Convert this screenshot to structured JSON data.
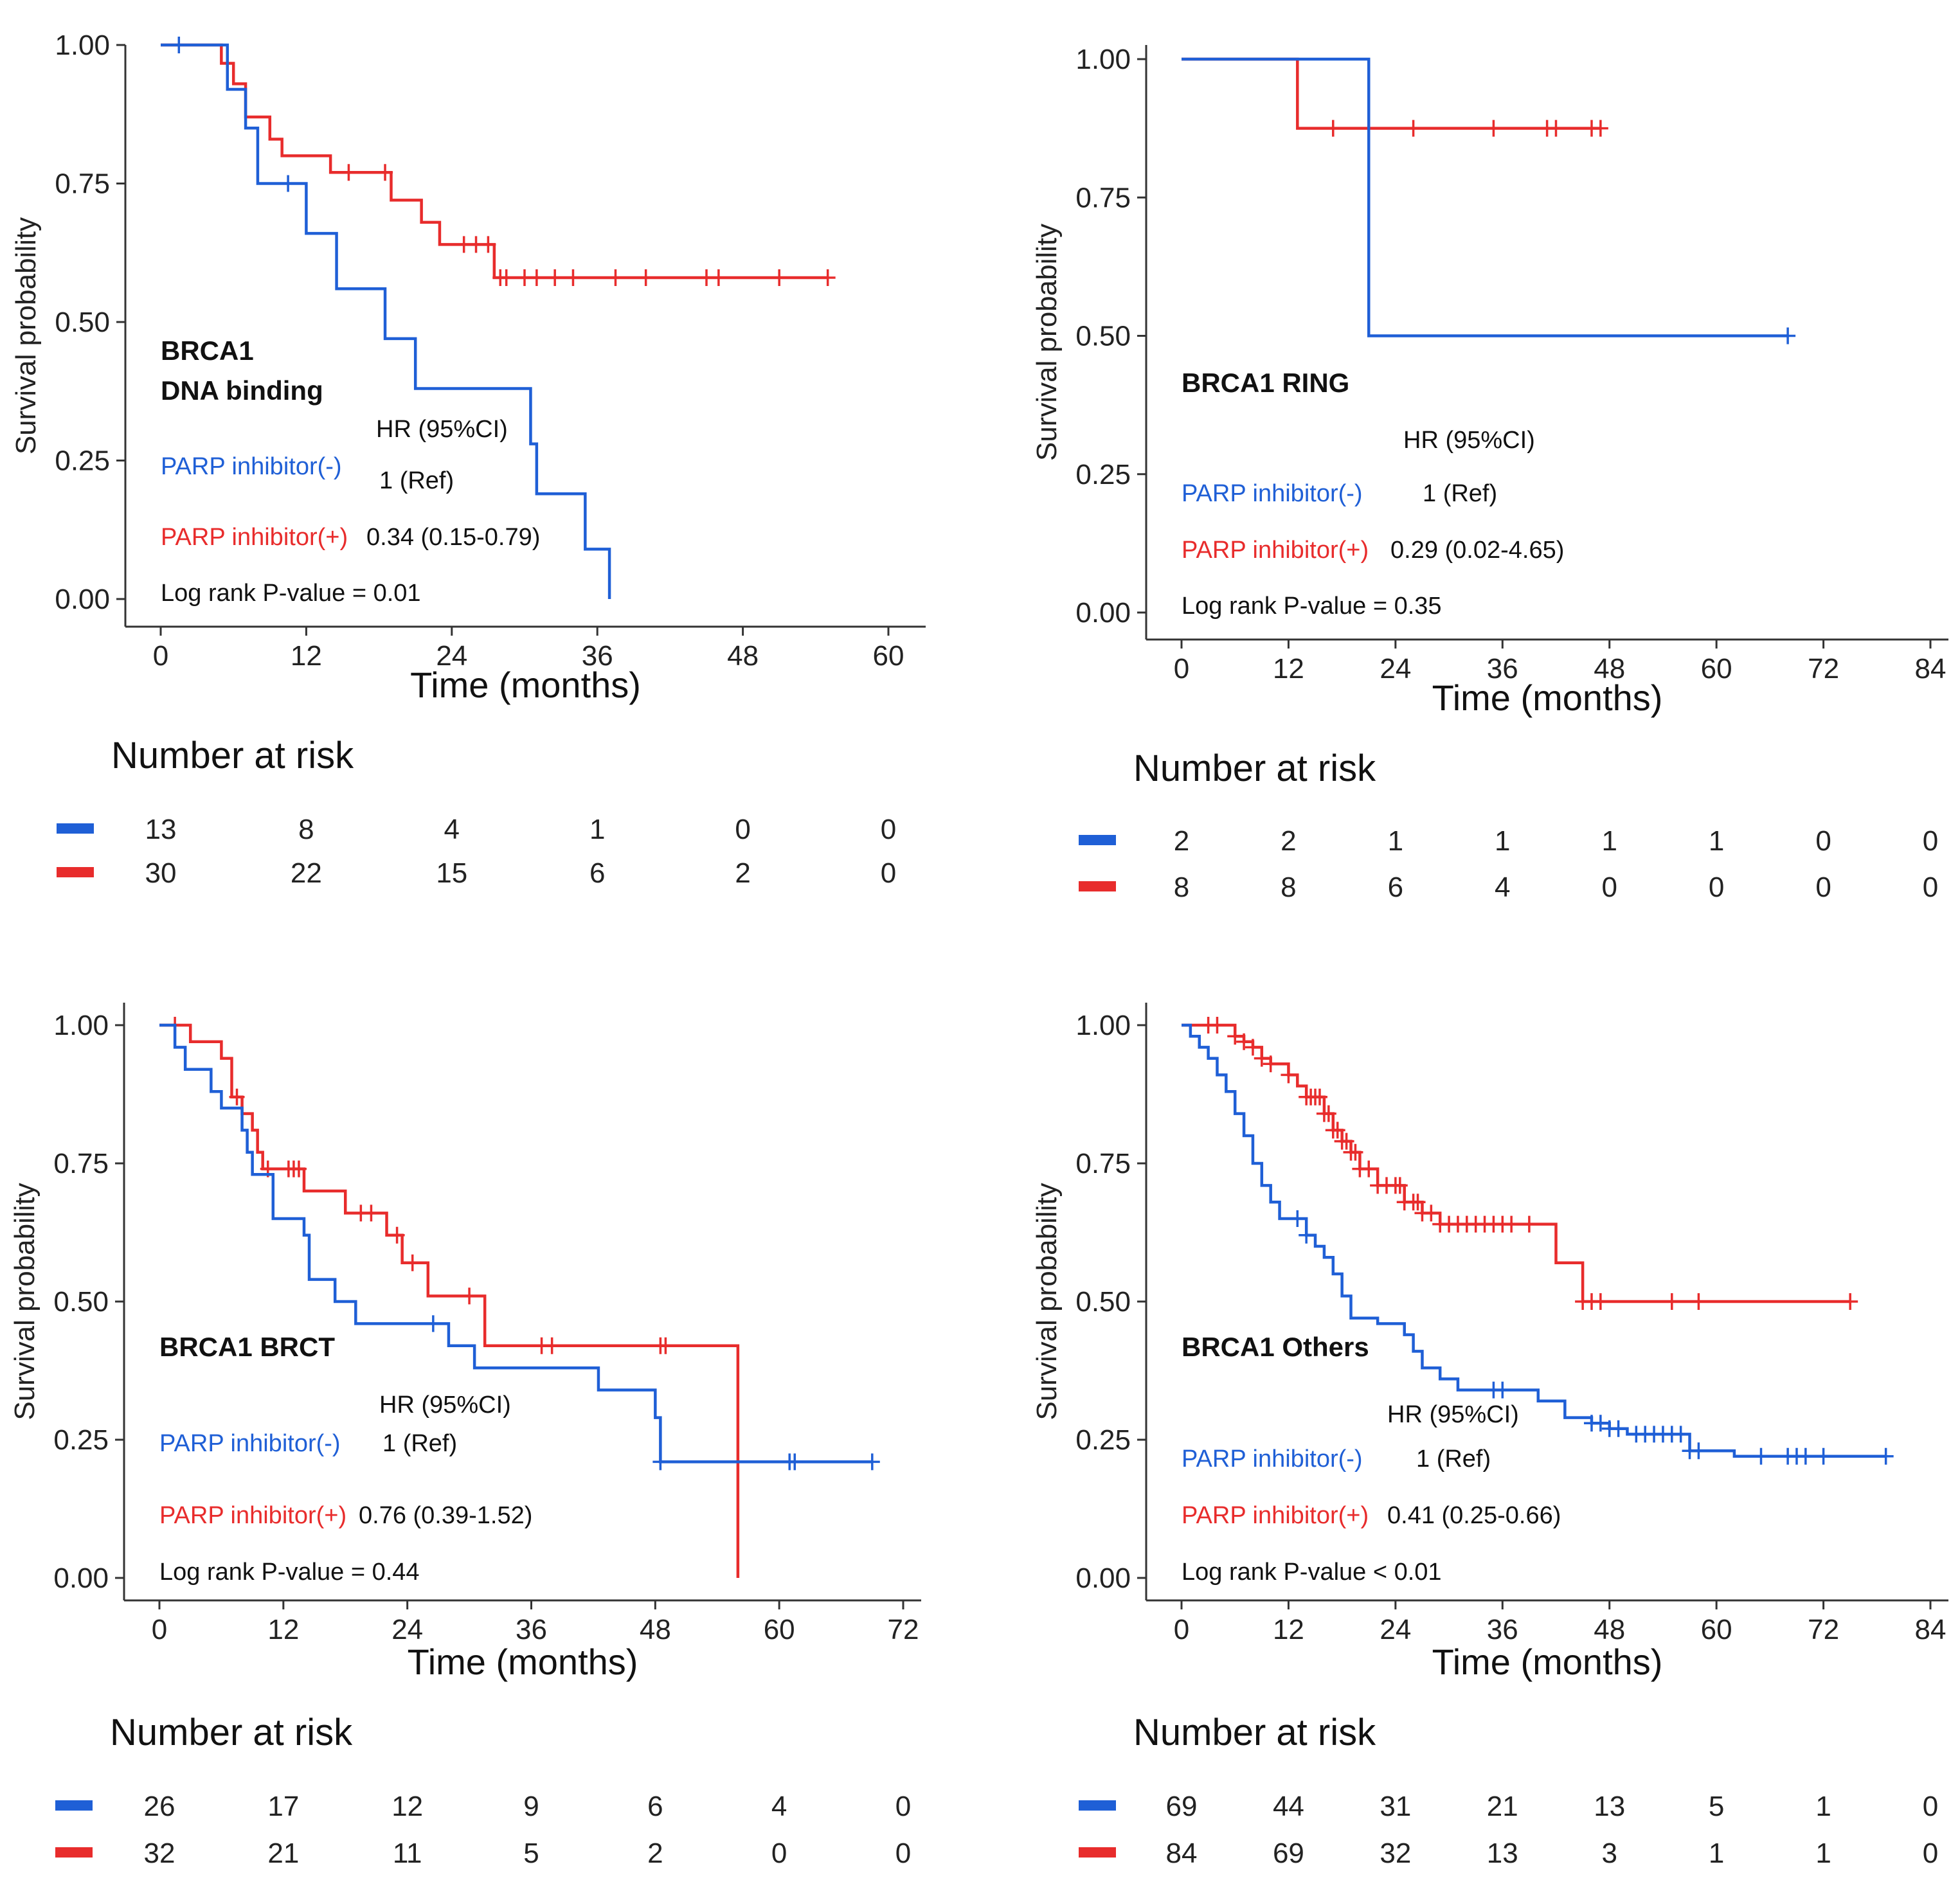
{
  "colors": {
    "negative": "#1f5fd6",
    "positive": "#e82c2c",
    "axis": "#333333",
    "text": "#111111"
  },
  "common": {
    "xlabel": "Time (months)",
    "ylabel": "Survival probability",
    "yticks": [
      "0.00",
      "0.25",
      "0.50",
      "0.75",
      "1.00"
    ],
    "risk_title": "Number at risk",
    "hr_header": "HR (95%CI)",
    "neg_label": "PARP inhibitor(-)",
    "pos_label": "PARP inhibitor(+)"
  },
  "chart_data": [
    {
      "type": "line",
      "subtype": "kaplan-meier",
      "title": [
        "BRCA1",
        "DNA binding"
      ],
      "xlabel": "Time (months)",
      "ylabel": "Survival probability",
      "xlim": [
        0,
        60
      ],
      "ylim": [
        0,
        1
      ],
      "xticks": [
        0,
        12,
        24,
        36,
        48,
        60
      ],
      "hr": {
        "negative": "1 (Ref)",
        "positive": "0.34 (0.15-0.79)"
      },
      "pvalue_text": "Log rank P-value = 0.01",
      "series": [
        {
          "name": "PARP inhibitor(-)",
          "color": "negative",
          "steps": [
            [
              0,
              1
            ],
            [
              5.5,
              0.92
            ],
            [
              7,
              0.85
            ],
            [
              8,
              0.75
            ],
            [
              12,
              0.66
            ],
            [
              14.5,
              0.56
            ],
            [
              18.5,
              0.47
            ],
            [
              21,
              0.38
            ],
            [
              30.5,
              0.28
            ],
            [
              31,
              0.19
            ],
            [
              35,
              0.09
            ],
            [
              37,
              0
            ]
          ],
          "end": 37,
          "censors": [
            1.5,
            10.5
          ]
        },
        {
          "name": "PARP inhibitor(+)",
          "color": "positive",
          "steps": [
            [
              0,
              1
            ],
            [
              5,
              0.967
            ],
            [
              6,
              0.93
            ],
            [
              7,
              0.87
            ],
            [
              9,
              0.83
            ],
            [
              10,
              0.8
            ],
            [
              14,
              0.77
            ],
            [
              19,
              0.72
            ],
            [
              21.5,
              0.68
            ],
            [
              23,
              0.64
            ],
            [
              27.5,
              0.58
            ]
          ],
          "end": 55,
          "censors": [
            15.5,
            18.5,
            25,
            26,
            27,
            28,
            28.5,
            30,
            31,
            32.5,
            34,
            37.5,
            40,
            45,
            46,
            51,
            55
          ]
        }
      ],
      "risk": {
        "times": [
          0,
          12,
          24,
          36,
          48,
          60
        ],
        "negative": [
          13,
          8,
          4,
          1,
          0,
          0
        ],
        "positive": [
          30,
          22,
          15,
          6,
          2,
          0
        ]
      }
    },
    {
      "type": "line",
      "subtype": "kaplan-meier",
      "title": [
        "BRCA1 RING"
      ],
      "xlabel": "Time (months)",
      "ylabel": "Survival probability",
      "xlim": [
        0,
        84
      ],
      "ylim": [
        0,
        1
      ],
      "xticks": [
        0,
        12,
        24,
        36,
        48,
        60,
        72,
        84
      ],
      "hr": {
        "negative": "1 (Ref)",
        "positive": "0.29 (0.02-4.65)"
      },
      "pvalue_text": "Log rank P-value = 0.35",
      "series": [
        {
          "name": "PARP inhibitor(-)",
          "color": "negative",
          "steps": [
            [
              0,
              1
            ],
            [
              21,
              0.5
            ]
          ],
          "end": 68,
          "censors": [
            68
          ]
        },
        {
          "name": "PARP inhibitor(+)",
          "color": "positive",
          "steps": [
            [
              0,
              1
            ],
            [
              13,
              0.875
            ]
          ],
          "end": 47,
          "censors": [
            17,
            26,
            35,
            41,
            42,
            46,
            47
          ]
        }
      ],
      "risk": {
        "times": [
          0,
          12,
          24,
          36,
          48,
          60,
          72,
          84
        ],
        "negative": [
          2,
          2,
          1,
          1,
          1,
          1,
          0,
          0
        ],
        "positive": [
          8,
          8,
          6,
          4,
          0,
          0,
          0,
          0
        ]
      }
    },
    {
      "type": "line",
      "subtype": "kaplan-meier",
      "title": [
        "BRCA1 BRCT"
      ],
      "xlabel": "Time (months)",
      "ylabel": "Survival probability",
      "xlim": [
        0,
        72
      ],
      "ylim": [
        0,
        1
      ],
      "xticks": [
        0,
        12,
        24,
        36,
        48,
        60,
        72
      ],
      "hr": {
        "negative": "1 (Ref)",
        "positive": "0.76 (0.39-1.52)"
      },
      "pvalue_text": "Log rank P-value = 0.44",
      "series": [
        {
          "name": "PARP inhibitor(-)",
          "color": "negative",
          "steps": [
            [
              0,
              1
            ],
            [
              1.5,
              0.96
            ],
            [
              2.5,
              0.92
            ],
            [
              5,
              0.88
            ],
            [
              6,
              0.85
            ],
            [
              8,
              0.81
            ],
            [
              8.5,
              0.77
            ],
            [
              9,
              0.73
            ],
            [
              11,
              0.65
            ],
            [
              14,
              0.62
            ],
            [
              14.5,
              0.54
            ],
            [
              17,
              0.5
            ],
            [
              19,
              0.46
            ],
            [
              28,
              0.42
            ],
            [
              30.5,
              0.38
            ],
            [
              42.5,
              0.34
            ],
            [
              48,
              0.29
            ],
            [
              48.5,
              0.21
            ]
          ],
          "end": 69,
          "censors": [
            26.5,
            48.5,
            61,
            61.5,
            69
          ]
        },
        {
          "name": "PARP inhibitor(+)",
          "color": "positive",
          "steps": [
            [
              0,
              1
            ],
            [
              3,
              0.97
            ],
            [
              6,
              0.94
            ],
            [
              7,
              0.87
            ],
            [
              8,
              0.84
            ],
            [
              9,
              0.81
            ],
            [
              9.5,
              0.77
            ],
            [
              10,
              0.74
            ],
            [
              14,
              0.7
            ],
            [
              18,
              0.66
            ],
            [
              22,
              0.62
            ],
            [
              23.5,
              0.57
            ],
            [
              26,
              0.51
            ],
            [
              31.5,
              0.42
            ],
            [
              56,
              0
            ]
          ],
          "end": 56,
          "censors": [
            1.5,
            7.5,
            10.5,
            12.5,
            13,
            13.5,
            19.5,
            20.5,
            23,
            24.5,
            30,
            37,
            38,
            48.5,
            49
          ]
        }
      ],
      "risk": {
        "times": [
          0,
          12,
          24,
          36,
          48,
          60,
          72
        ],
        "negative": [
          26,
          17,
          12,
          9,
          6,
          4,
          0
        ],
        "positive": [
          32,
          21,
          11,
          5,
          2,
          0,
          0
        ]
      }
    },
    {
      "type": "line",
      "subtype": "kaplan-meier",
      "title": [
        "BRCA1 Others"
      ],
      "xlabel": "Time (months)",
      "ylabel": "Survival probability",
      "xlim": [
        0,
        84
      ],
      "ylim": [
        0,
        1
      ],
      "xticks": [
        0,
        12,
        24,
        36,
        48,
        60,
        72,
        84
      ],
      "hr": {
        "negative": "1 (Ref)",
        "positive": "0.41 (0.25-0.66)"
      },
      "pvalue_text": "Log rank P-value < 0.01",
      "series": [
        {
          "name": "PARP inhibitor(-)",
          "color": "negative",
          "steps": [
            [
              0,
              1
            ],
            [
              1,
              0.98
            ],
            [
              2,
              0.96
            ],
            [
              3,
              0.94
            ],
            [
              4,
              0.91
            ],
            [
              5,
              0.88
            ],
            [
              6,
              0.84
            ],
            [
              7,
              0.8
            ],
            [
              8,
              0.75
            ],
            [
              9,
              0.71
            ],
            [
              10,
              0.68
            ],
            [
              11,
              0.65
            ],
            [
              14,
              0.62
            ],
            [
              15,
              0.6
            ],
            [
              16,
              0.58
            ],
            [
              17,
              0.55
            ],
            [
              18,
              0.51
            ],
            [
              19,
              0.47
            ],
            [
              22,
              0.46
            ],
            [
              25,
              0.44
            ],
            [
              26,
              0.41
            ],
            [
              27,
              0.38
            ],
            [
              29,
              0.36
            ],
            [
              31,
              0.34
            ],
            [
              40,
              0.32
            ],
            [
              43,
              0.29
            ],
            [
              46,
              0.28
            ],
            [
              48,
              0.27
            ],
            [
              50,
              0.26
            ],
            [
              57,
              0.23
            ],
            [
              62,
              0.22
            ]
          ],
          "end": 79,
          "censors": [
            13,
            14,
            35,
            36,
            46,
            47,
            48,
            49,
            51,
            52,
            53,
            54,
            55,
            56,
            57,
            58,
            65,
            68,
            69,
            70,
            72,
            79
          ]
        },
        {
          "name": "PARP inhibitor(+)",
          "color": "positive",
          "steps": [
            [
              0,
              1
            ],
            [
              6,
              0.98
            ],
            [
              7,
              0.97
            ],
            [
              8,
              0.96
            ],
            [
              9,
              0.94
            ],
            [
              10,
              0.93
            ],
            [
              12,
              0.91
            ],
            [
              13,
              0.89
            ],
            [
              14,
              0.87
            ],
            [
              16,
              0.84
            ],
            [
              17,
              0.81
            ],
            [
              18,
              0.79
            ],
            [
              19,
              0.77
            ],
            [
              20,
              0.74
            ],
            [
              22,
              0.71
            ],
            [
              25,
              0.68
            ],
            [
              27,
              0.66
            ],
            [
              29,
              0.64
            ],
            [
              42,
              0.57
            ],
            [
              45,
              0.5
            ]
          ],
          "end": 75,
          "censors": [
            3,
            4,
            6,
            7,
            8,
            9,
            10,
            12,
            14,
            14.5,
            15,
            15.5,
            16,
            16.5,
            17,
            17.5,
            18,
            18.5,
            19,
            19.5,
            20,
            21,
            22,
            23,
            24,
            24.5,
            25,
            26,
            26.5,
            27,
            28,
            29,
            30,
            31,
            32,
            33,
            34,
            35,
            36,
            37,
            39,
            45,
            46,
            47,
            55,
            58,
            75
          ]
        }
      ],
      "risk": {
        "times": [
          0,
          12,
          24,
          36,
          48,
          60,
          72,
          84
        ],
        "negative": [
          69,
          44,
          31,
          21,
          13,
          5,
          1,
          0
        ],
        "positive": [
          84,
          69,
          32,
          13,
          3,
          1,
          1,
          0
        ]
      }
    }
  ]
}
